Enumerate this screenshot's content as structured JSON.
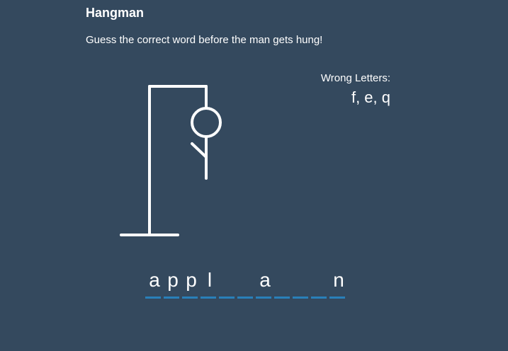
{
  "game": {
    "title": "Hangman",
    "subtitle": "Guess the correct word before the man gets hung!"
  },
  "wrong_letters": {
    "label": "Wrong Letters:",
    "letters": "f, e, q"
  },
  "word": {
    "letters": [
      "a",
      "p",
      "p",
      "l",
      "",
      "",
      "a",
      "",
      "",
      "",
      "n"
    ]
  },
  "colors": {
    "background": "#34495e",
    "text": "#ffffff",
    "underline": "#2980b9"
  }
}
